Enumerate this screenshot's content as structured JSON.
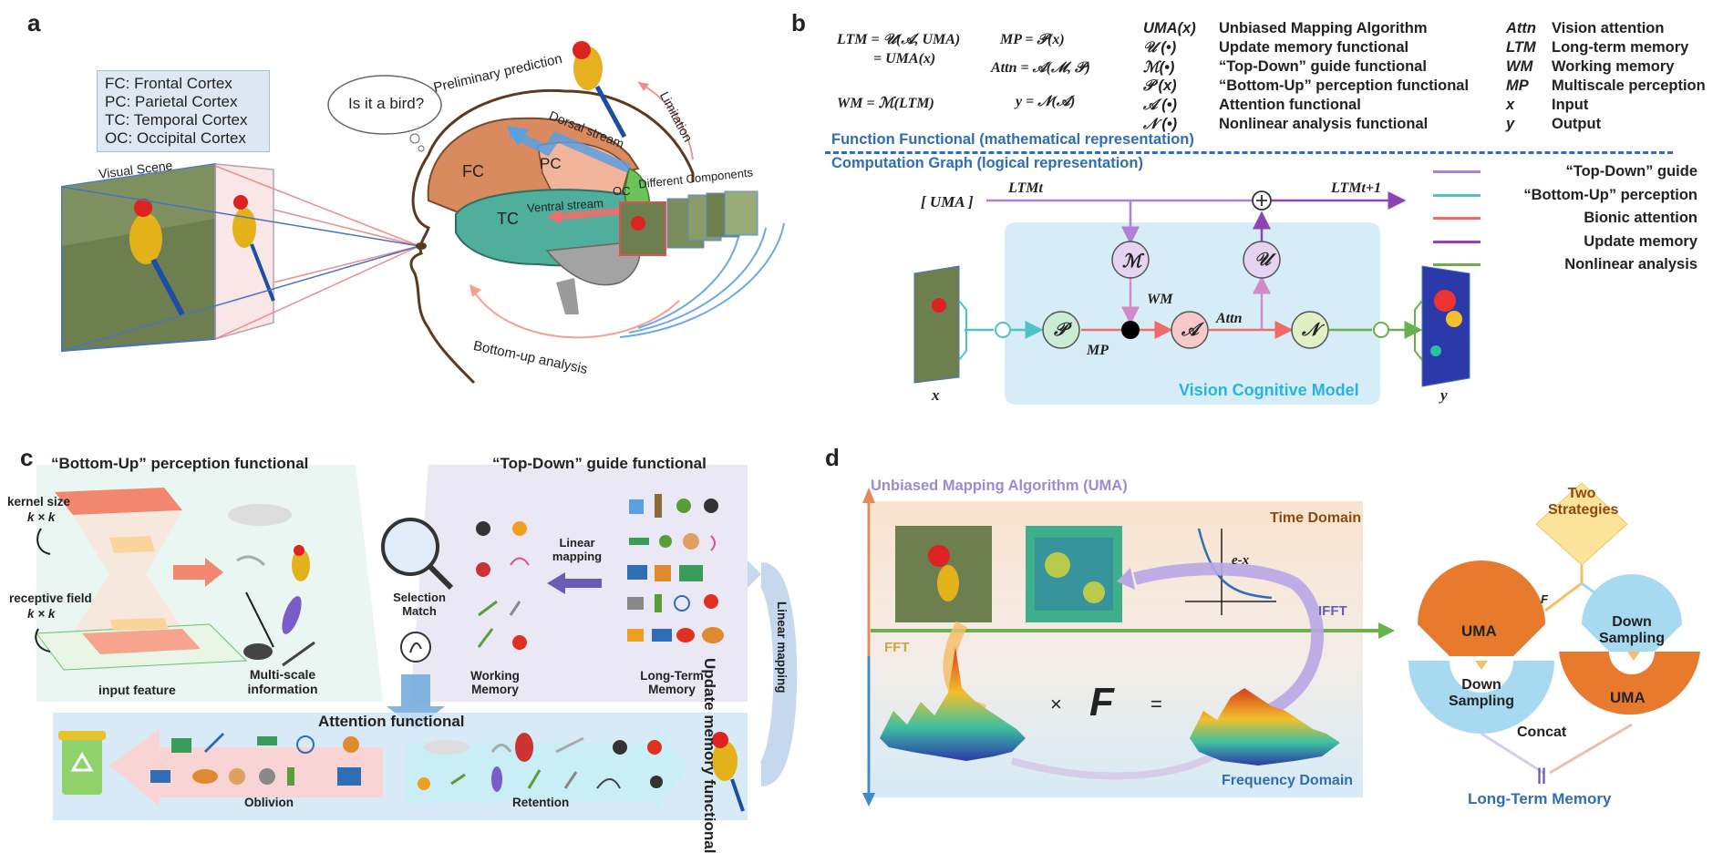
{
  "panels": {
    "a": "a",
    "b": "b",
    "c": "c",
    "d": "d"
  },
  "a": {
    "legend": [
      "FC: Frontal Cortex",
      "PC: Parietal Cortex",
      "TC: Temporal Cortex",
      "OC: Occipital Cortex"
    ],
    "visual_scene": "Visual Scene",
    "thought": "Is it a bird?",
    "preliminary": "Preliminary prediction",
    "limitation": "Limitation",
    "different_components": "Different Components",
    "fc": "FC",
    "pc": "PC",
    "tc": "TC",
    "oc": "OC",
    "dorsal": "Dorsal stream",
    "ventral": "Ventral stream",
    "bottom_up": "Bottom-up analysis"
  },
  "b": {
    "f1a": "LTM = 𝒰(𝒜, UMA)",
    "f1b": "= UMA(x)",
    "f2": "WM = ℳ(LTM)",
    "f3": "MP = 𝒫(x)",
    "f4": "Attn = 𝒜(ℳ, 𝒫)",
    "f5": "y = 𝒩(𝒜)",
    "defs": [
      {
        "sym": "UMA(x)",
        "text": "Unbiased Mapping Algorithm"
      },
      {
        "sym": "𝒰 (•)",
        "text": "Update memory functional"
      },
      {
        "sym": "ℳ(•)",
        "text": "“Top-Down” guide functional"
      },
      {
        "sym": "𝒫 (x)",
        "text": "“Bottom-Up” perception functional"
      },
      {
        "sym": "𝒜 (•)",
        "text": "Attention functional"
      },
      {
        "sym": "𝒩 (•)",
        "text": "Nonlinear analysis functional"
      }
    ],
    "abbr": [
      {
        "sym": "Attn",
        "text": "Vision attention"
      },
      {
        "sym": "LTM",
        "text": "Long-term memory"
      },
      {
        "sym": "WM",
        "text": "Working memory"
      },
      {
        "sym": "MP",
        "text": "Multiscale perception"
      },
      {
        "sym": "x",
        "text": "Input"
      },
      {
        "sym": "y",
        "text": "Output"
      }
    ],
    "function_functional": "Function Functional (mathematical representation)",
    "computation_graph": "Computation Graph (logical representation)",
    "uma": "[ UMA ]",
    "ltm_t": "LTMt",
    "ltm_t1": "LTMt+1",
    "wm": "WM",
    "mp": "MP",
    "attn": "Attn",
    "x": "x",
    "y": "y",
    "model_label": "Vision Cognitive Model",
    "node_M": "ℳ",
    "node_U": "𝒰",
    "node_P": "𝒫",
    "node_A": "𝒜",
    "node_N": "𝒩",
    "arrow_legend": [
      {
        "label": "“Top-Down” guide",
        "color": "#b07fd8"
      },
      {
        "label": "“Bottom-Up” perception",
        "color": "#4fc3c7"
      },
      {
        "label": "Bionic attention",
        "color": "#f06a6a"
      },
      {
        "label": "Update memory",
        "color": "#9b3fb5"
      },
      {
        "label": "Nonlinear analysis",
        "color": "#6ab04c"
      }
    ]
  },
  "c": {
    "bottom_up_title": "“Bottom-Up” perception functional",
    "top_down_title": "“Top-Down” guide functional",
    "kernel_size": "kernel size",
    "kk1": "k × k",
    "receptive_field": "receptive field",
    "kk2": "k × k",
    "input_feature": "input feature",
    "multi_scale": "Multi-scale information",
    "selection_match": "Selection Match",
    "linear_mapping": "Linear mapping",
    "working_memory": "Working Memory",
    "long_term_memory": "Long-Term Memory",
    "attention_functional": "Attention functional",
    "oblivion": "Oblivion",
    "retention": "Retention",
    "update_memory": "Update memory functional",
    "linear_mapping_v": "Linear mapping"
  },
  "d": {
    "uma_title": "Unbiased Mapping Algorithm (UMA)",
    "time_domain": "Time Domain",
    "frequency_domain": "Frequency Domain",
    "fft": "FFT",
    "ifft": "IFFT",
    "exp": "e-x",
    "times": "×",
    "F": "F",
    "equals": "=",
    "two_strategies": "Two Strategies",
    "f_small": "F",
    "uma1": "UMA",
    "down1": "Down Sampling",
    "down2": "Down Sampling",
    "uma2": "UMA",
    "concat": "Concat",
    "eq_sign": "||",
    "ltm": "Long-Term Memory"
  }
}
